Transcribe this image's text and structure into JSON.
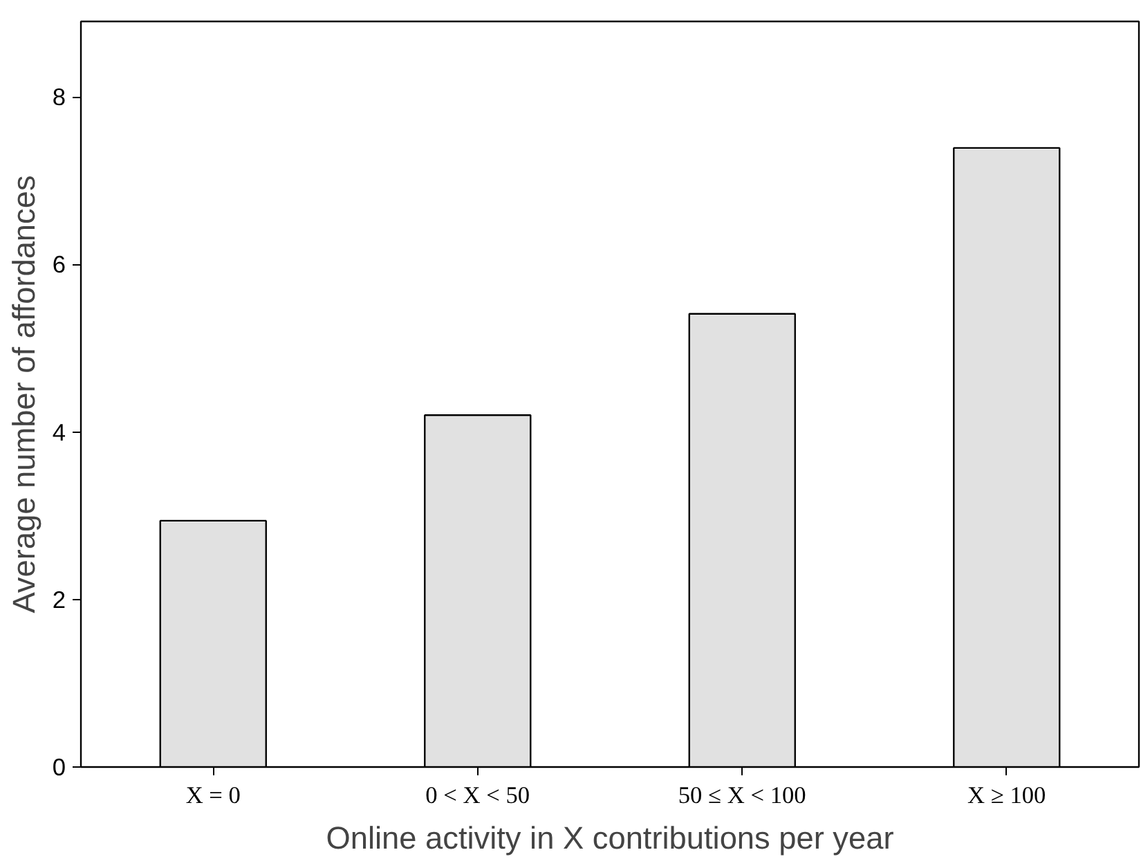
{
  "chart_data": {
    "type": "bar",
    "xlabel": "Online activity in X contributions per year",
    "ylabel": "Average number of affordances",
    "categories": [
      "X = 0",
      "0 < X < 50",
      "50 ≤ X < 100",
      "X ≥ 100"
    ],
    "values": [
      2.94,
      4.2,
      5.41,
      7.39
    ],
    "color": "#e1e1e1",
    "ylim": [
      0,
      8.9
    ],
    "yticks": [
      0,
      2,
      4,
      6,
      8
    ],
    "grid": false
  }
}
